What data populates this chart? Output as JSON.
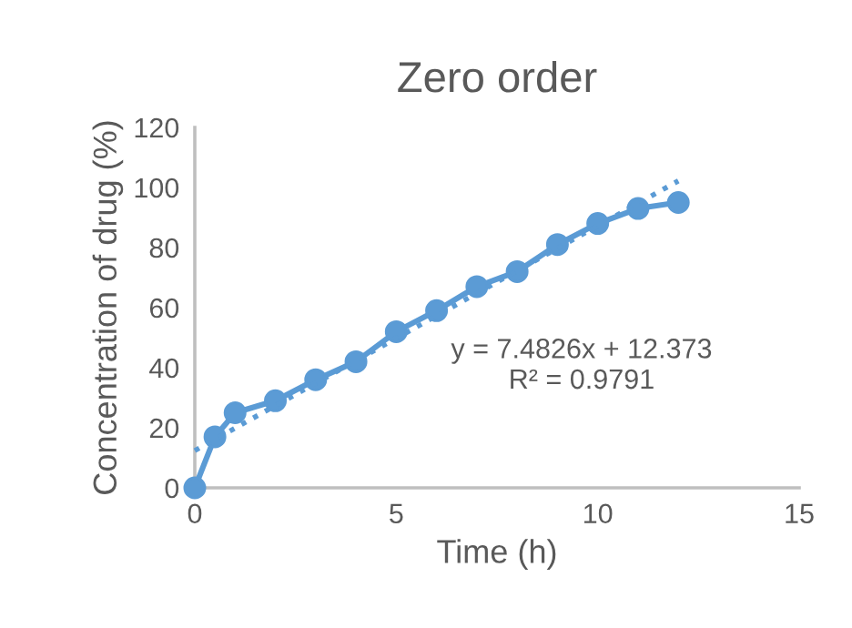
{
  "chart_data": {
    "type": "line",
    "title": "Zero order",
    "xlabel": "Time (h)",
    "ylabel": "Concentration of drug (%)",
    "series": [
      {
        "color": "#5b9bd5",
        "marker": "circle",
        "line_style": "solid",
        "x": [
          0,
          0.5,
          1,
          2,
          3,
          4,
          5,
          6,
          7,
          8,
          9,
          10,
          11,
          12
        ],
        "values": [
          0,
          17,
          25,
          29,
          36,
          42,
          52,
          59,
          67,
          72,
          81,
          88,
          93,
          95
        ]
      },
      {
        "type": "line",
        "color": "#5b9bd5",
        "marker": "none",
        "line_style": "dotted",
        "x": [
          0,
          12
        ],
        "values": [
          12.4,
          102.2
        ]
      }
    ],
    "annotations": [
      "y = 7.4826x + 12.373",
      "R² = 0.9791"
    ],
    "xlim": [
      0,
      15
    ],
    "xticks": [
      0,
      5,
      10,
      15
    ],
    "ylim": [
      0,
      120
    ],
    "yticks": [
      0,
      20,
      40,
      60,
      80,
      100,
      120
    ],
    "grid": false,
    "legend": false
  }
}
